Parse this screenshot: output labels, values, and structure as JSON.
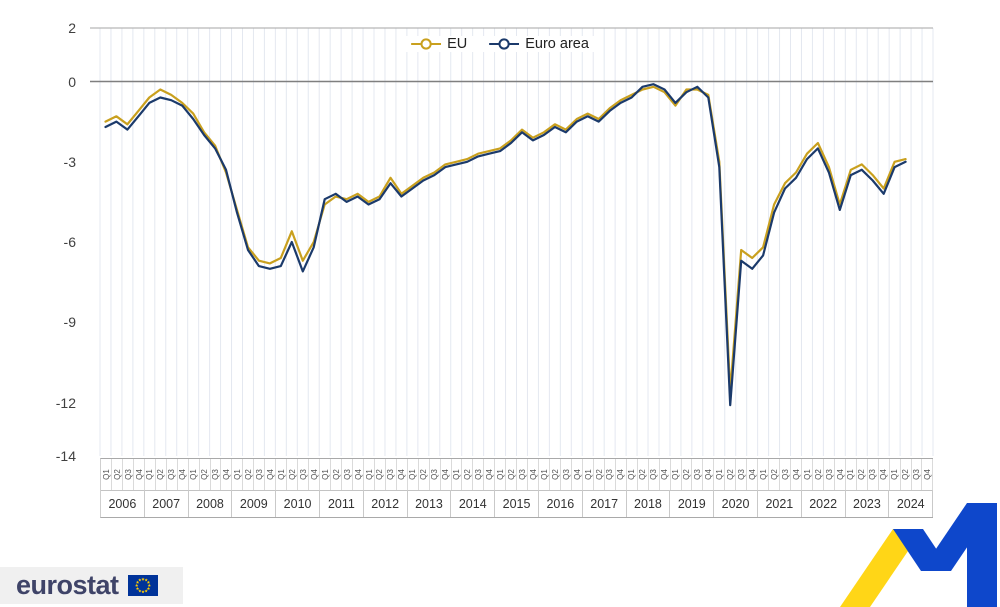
{
  "colors": {
    "eu": "#C9A01E",
    "euro_area": "#1B3A6B",
    "grid": "#E4E8F0",
    "zero_line": "#7F7F7F",
    "frame": "#A6A6A6",
    "flag_blue": "#003399",
    "star_yellow": "#FFCC00",
    "ribbon_blue": "#0E47CB",
    "ribbon_yellow": "#FFD617",
    "logo_text": "#3F4468"
  },
  "footer": {
    "logo_text": "eurostat"
  },
  "chart_data": {
    "type": "line",
    "title": "",
    "xlabel": "",
    "ylabel": "",
    "ylim": [
      -14,
      2
    ],
    "yticks": [
      2,
      0,
      -3,
      -6,
      -9,
      -12,
      -14
    ],
    "grid": "vertical",
    "legend_position": "top-center",
    "years": [
      "2006",
      "2007",
      "2008",
      "2009",
      "2010",
      "2011",
      "2012",
      "2013",
      "2014",
      "2015",
      "2016",
      "2017",
      "2018",
      "2019",
      "2020",
      "2021",
      "2022",
      "2023",
      "2024"
    ],
    "quarters": [
      "Q1",
      "Q2",
      "Q3",
      "Q4"
    ],
    "series": [
      {
        "name": "EU",
        "color": "#C9A01E",
        "values": [
          -1.5,
          -1.3,
          -1.6,
          -1.1,
          -0.6,
          -0.3,
          -0.5,
          -0.8,
          -1.2,
          -1.9,
          -2.4,
          -3.4,
          -4.8,
          -6.2,
          -6.7,
          -6.8,
          -6.6,
          -5.6,
          -6.7,
          -6.0,
          -4.6,
          -4.3,
          -4.4,
          -4.2,
          -4.5,
          -4.3,
          -3.6,
          -4.2,
          -3.9,
          -3.6,
          -3.4,
          -3.1,
          -3.0,
          -2.9,
          -2.7,
          -2.6,
          -2.5,
          -2.2,
          -1.8,
          -2.1,
          -1.9,
          -1.6,
          -1.8,
          -1.4,
          -1.2,
          -1.4,
          -1.0,
          -0.7,
          -0.5,
          -0.3,
          -0.2,
          -0.4,
          -0.9,
          -0.3,
          -0.3,
          -0.5,
          -3.0,
          -11.6,
          -6.3,
          -6.6,
          -6.2,
          -4.6,
          -3.8,
          -3.4,
          -2.7,
          -2.3,
          -3.2,
          -4.6,
          -3.3,
          -3.1,
          -3.5,
          -4.0,
          -3.0,
          -2.9,
          null,
          null
        ]
      },
      {
        "name": "Euro area",
        "color": "#1B3A6B",
        "values": [
          -1.7,
          -1.5,
          -1.8,
          -1.3,
          -0.8,
          -0.6,
          -0.7,
          -0.9,
          -1.4,
          -2.0,
          -2.5,
          -3.3,
          -4.9,
          -6.3,
          -6.9,
          -7.0,
          -6.9,
          -6.0,
          -7.1,
          -6.2,
          -4.4,
          -4.2,
          -4.5,
          -4.3,
          -4.6,
          -4.4,
          -3.8,
          -4.3,
          -4.0,
          -3.7,
          -3.5,
          -3.2,
          -3.1,
          -3.0,
          -2.8,
          -2.7,
          -2.6,
          -2.3,
          -1.9,
          -2.2,
          -2.0,
          -1.7,
          -1.9,
          -1.5,
          -1.3,
          -1.5,
          -1.1,
          -0.8,
          -0.6,
          -0.2,
          -0.1,
          -0.3,
          -0.8,
          -0.4,
          -0.2,
          -0.6,
          -3.2,
          -12.1,
          -6.7,
          -7.0,
          -6.5,
          -4.9,
          -4.0,
          -3.6,
          -2.9,
          -2.5,
          -3.4,
          -4.8,
          -3.5,
          -3.3,
          -3.7,
          -4.2,
          -3.2,
          -3.0,
          null,
          null
        ]
      }
    ]
  }
}
